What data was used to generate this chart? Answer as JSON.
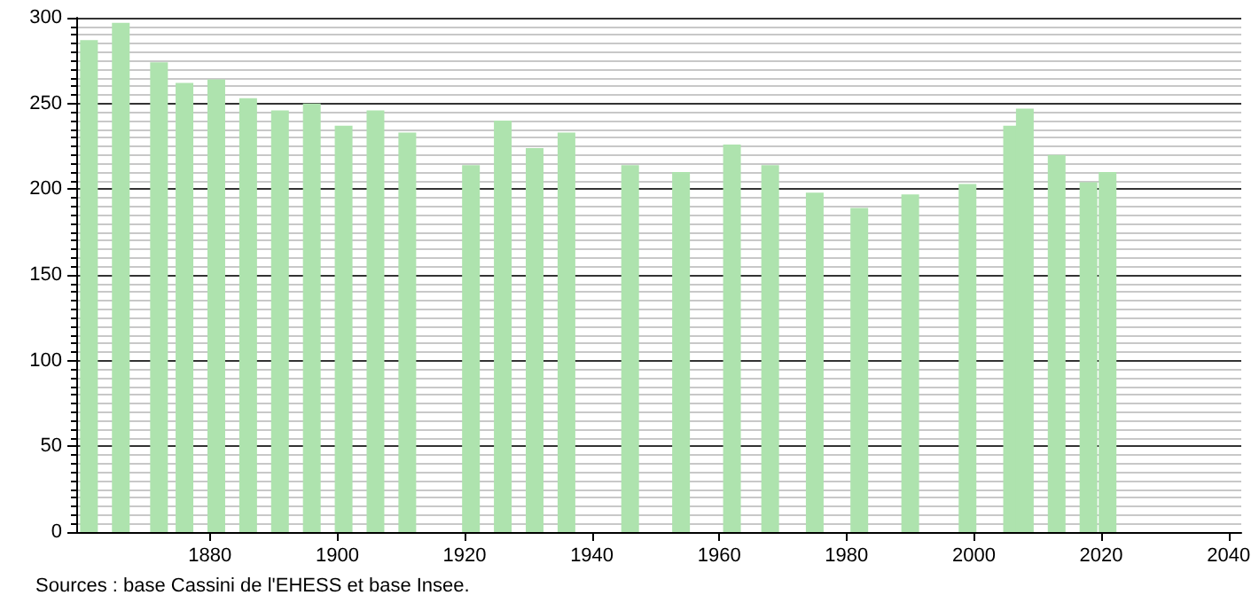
{
  "chart_data": {
    "type": "bar",
    "x": [
      1861,
      1866,
      1872,
      1876,
      1881,
      1886,
      1891,
      1896,
      1901,
      1906,
      1911,
      1921,
      1926,
      1931,
      1936,
      1946,
      1954,
      1962,
      1968,
      1975,
      1982,
      1990,
      1999,
      2006,
      2008,
      2013,
      2018,
      2021
    ],
    "values": [
      287,
      297,
      274,
      262,
      264,
      253,
      246,
      250,
      237,
      246,
      233,
      214,
      240,
      224,
      233,
      214,
      210,
      226,
      214,
      198,
      189,
      197,
      203,
      237,
      247,
      220,
      204,
      210
    ],
    "color": "#aee3ae",
    "xlim": [
      1859,
      2042
    ],
    "xticks": [
      1880,
      1900,
      1920,
      1940,
      1960,
      1980,
      2000,
      2020,
      2040
    ],
    "ylim": [
      0,
      300
    ],
    "yticks": [
      0,
      50,
      100,
      150,
      200,
      250,
      300
    ],
    "grid": "y",
    "annotations": [
      "Sources : base Cassini de l'EHESS et base Insee."
    ]
  }
}
